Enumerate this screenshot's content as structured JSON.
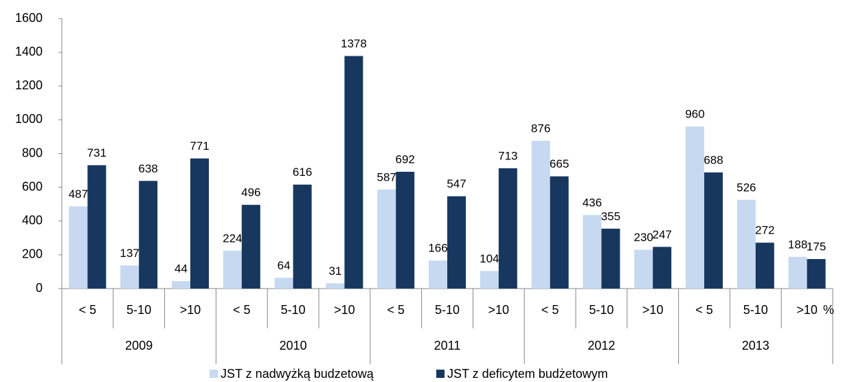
{
  "chart_data": {
    "type": "bar",
    "categories": [
      "< 5",
      "5-10",
      ">10",
      "< 5",
      "5-10",
      ">10",
      "< 5",
      "5-10",
      ">10",
      "< 5",
      "5-10",
      ">10",
      "< 5",
      "5-10",
      ">10"
    ],
    "groups": [
      "2009",
      "2010",
      "2011",
      "2012",
      "2013"
    ],
    "annotation": "%",
    "series": [
      {
        "name": "JST z nadwyżką budzetową",
        "color": "#c6d9f1",
        "values": [
          487,
          137,
          44,
          224,
          64,
          31,
          587,
          166,
          104,
          876,
          436,
          230,
          960,
          526,
          188
        ]
      },
      {
        "name": "JST z deficytem budżetowym",
        "color": "#17375e",
        "values": [
          731,
          638,
          771,
          496,
          616,
          1378,
          692,
          547,
          713,
          665,
          355,
          247,
          688,
          272,
          175
        ]
      }
    ],
    "ylim": [
      0,
      1600
    ],
    "yticks": [
      0,
      200,
      400,
      600,
      800,
      1000,
      1200,
      1400,
      1600
    ],
    "grid": false
  }
}
